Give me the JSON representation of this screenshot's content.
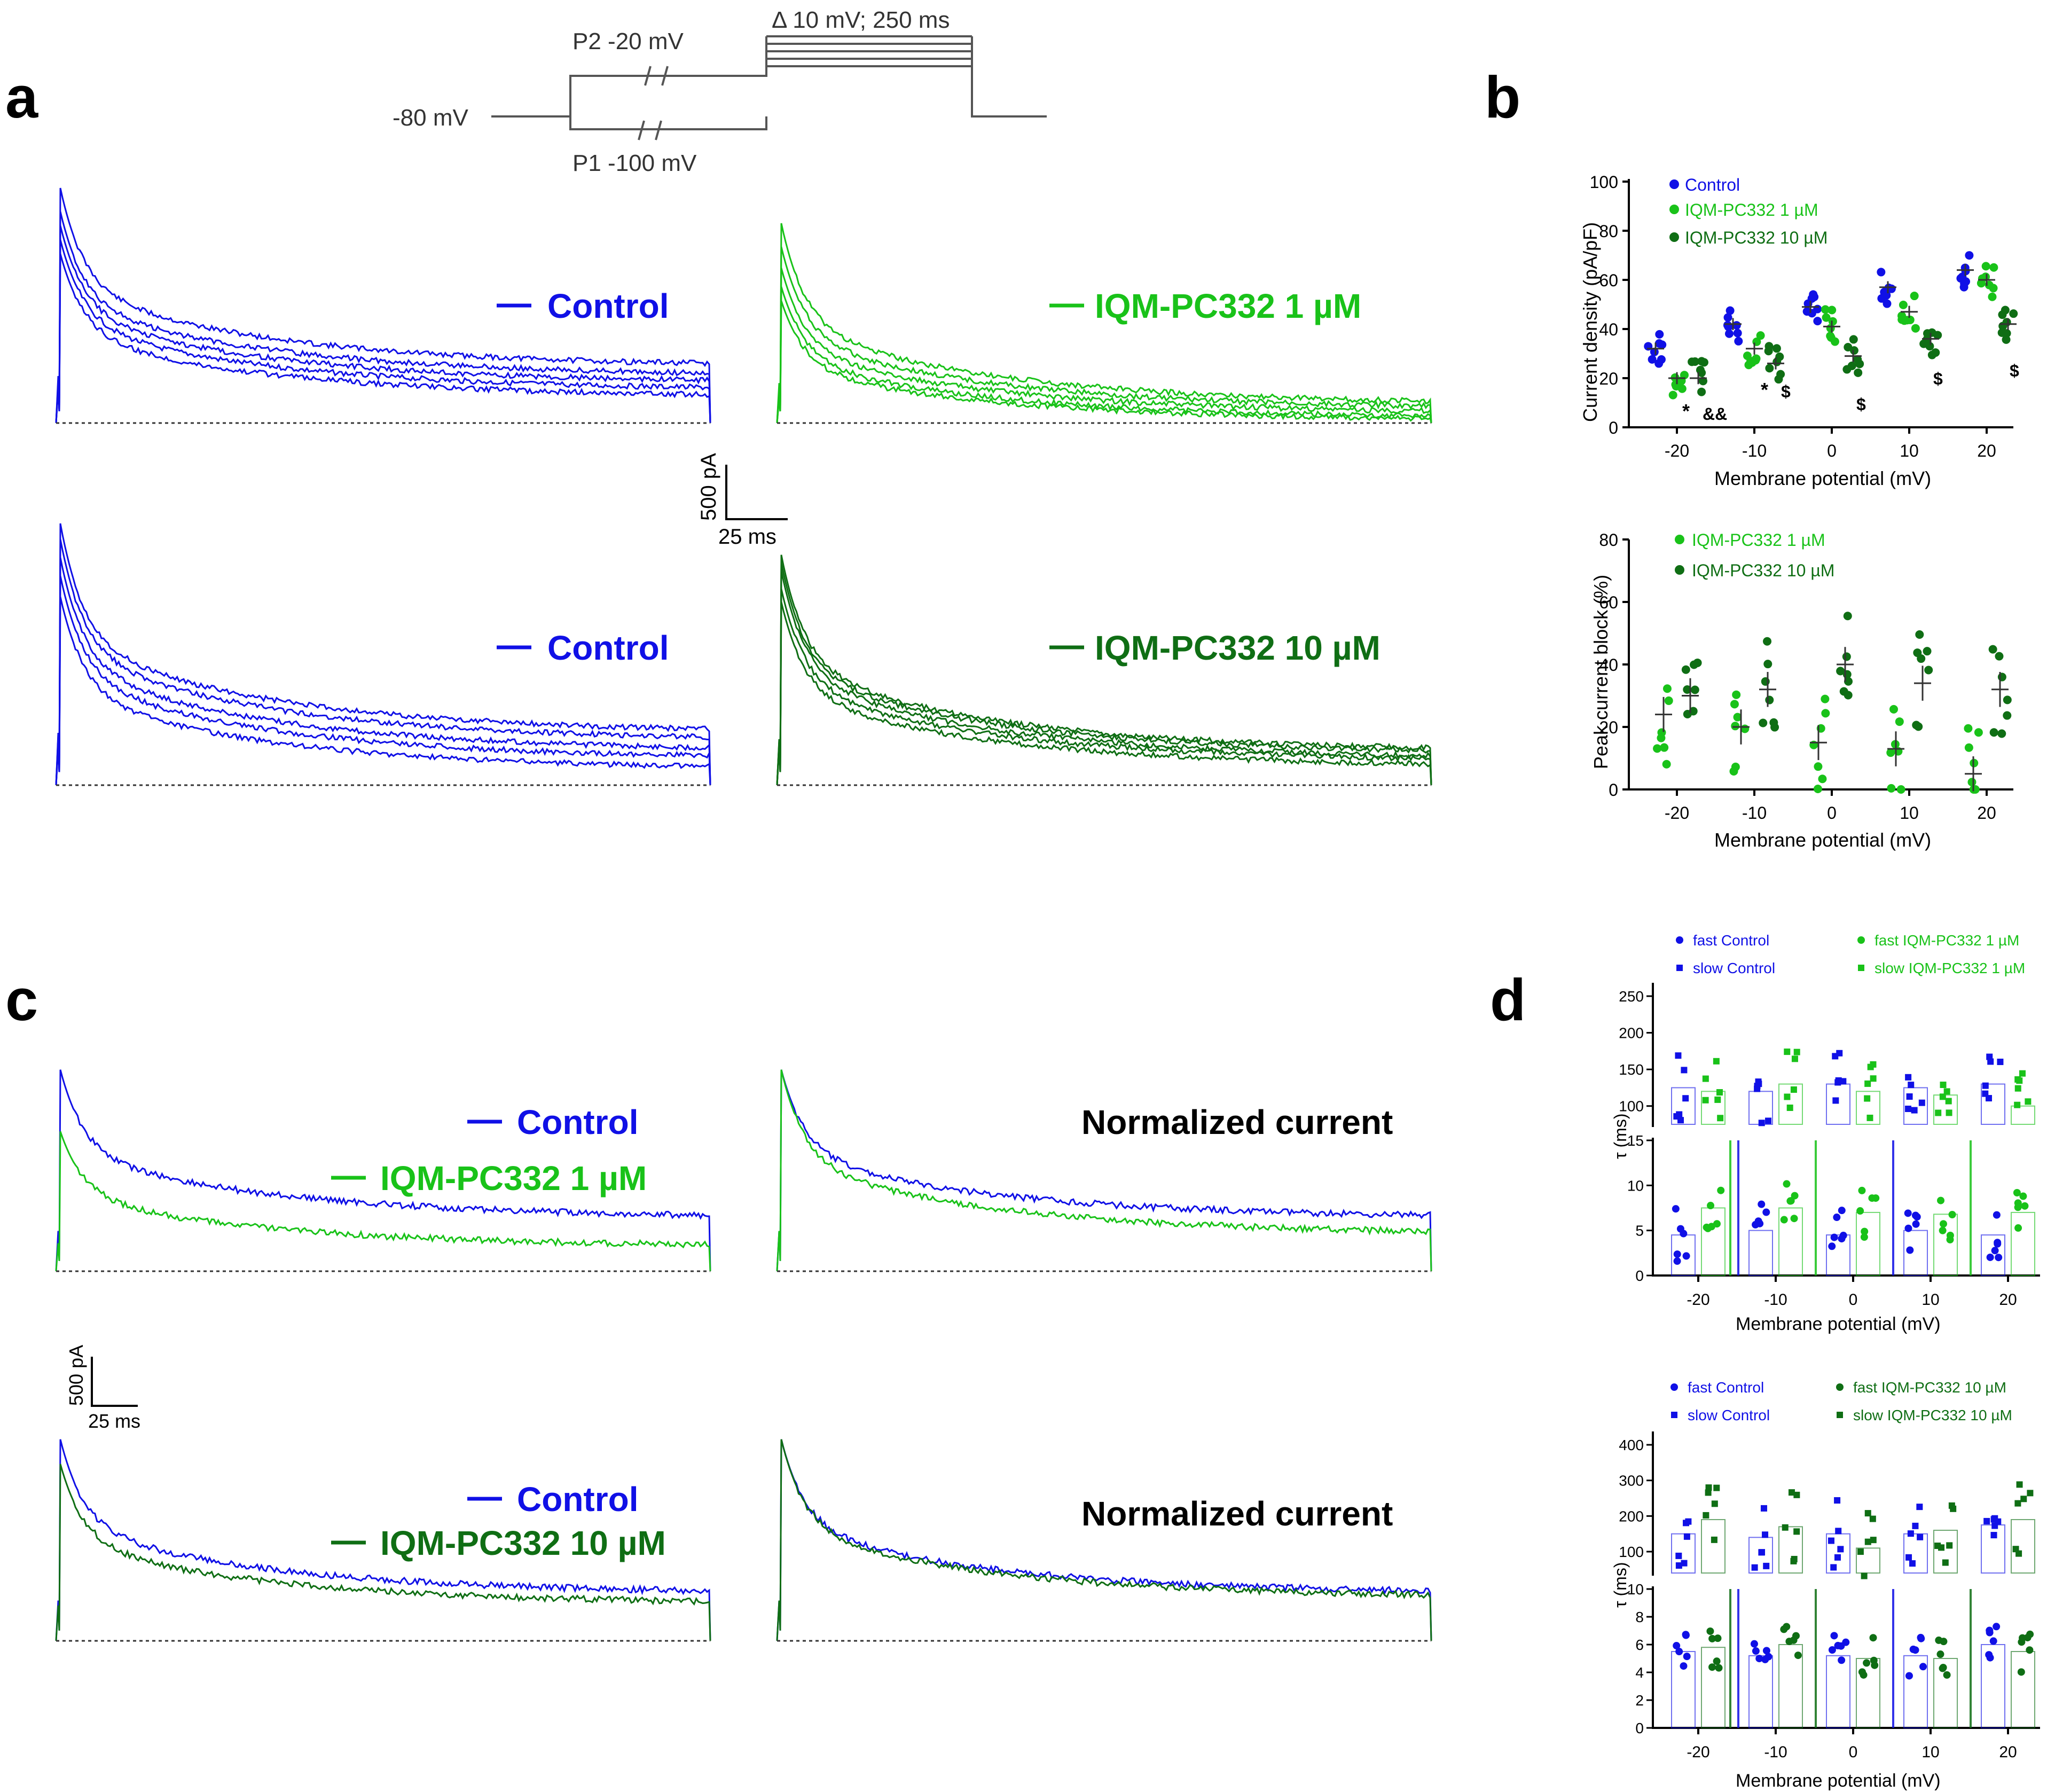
{
  "colors": {
    "control": "#1010e6",
    "light": "#19c219",
    "dark": "#0f6e14",
    "black": "#000000"
  },
  "panel_a": {
    "label": "a",
    "protocol": {
      "hold": "-80 mV",
      "p1": "P1 -100 mV",
      "p2": "P2 -20 mV",
      "step": "Δ 10 mV; 250 ms"
    },
    "legend_control": "Control",
    "legend_1uM": "IQM-PC332 1 µM",
    "legend_10uM": "IQM-PC332 10 µM",
    "scale_y": "500 pA",
    "scale_x": "25 ms",
    "traces": {
      "top_left_peaks": [
        1.0,
        0.9,
        0.84,
        0.78,
        0.72
      ],
      "top_left_ends": [
        0.24,
        0.2,
        0.17,
        0.14,
        0.11
      ],
      "top_right_peaks": [
        0.85,
        0.75,
        0.66,
        0.58,
        0.52
      ],
      "top_right_ends": [
        0.08,
        0.06,
        0.04,
        0.02,
        0.01
      ],
      "bottom_left_peaks": [
        1.0,
        0.94,
        0.87,
        0.8,
        0.72
      ],
      "bottom_left_ends": [
        0.2,
        0.17,
        0.13,
        0.1,
        0.06
      ],
      "bottom_right_peaks": [
        0.88,
        0.85,
        0.82,
        0.75,
        0.7
      ],
      "bottom_right_ends": [
        0.13,
        0.12,
        0.1,
        0.09,
        0.07
      ]
    }
  },
  "panel_b": {
    "label": "b",
    "top": {
      "ylabel": "Current density (pA/pF)",
      "xlabel": "Membrane potential (mV)",
      "yticks": [
        "0",
        "20",
        "40",
        "60",
        "80",
        "100"
      ],
      "xticks": [
        "-20",
        "-10",
        "0",
        "10",
        "20"
      ],
      "legend": [
        "Control",
        "IQM-PC332 1 µM",
        "IQM-PC332 10 µM"
      ],
      "annotations": [
        "*",
        "&&",
        "*",
        "$",
        "$",
        "$",
        "$"
      ]
    },
    "bottom": {
      "ylabel": "Peak current block (%)",
      "xlabel": "Membrane potential (mV)",
      "yticks": [
        "0",
        "20",
        "40",
        "60",
        "80"
      ],
      "xticks": [
        "-20",
        "-10",
        "0",
        "10",
        "20"
      ],
      "legend": [
        "IQM-PC332 1 µM",
        "IQM-PC332 10 µM"
      ]
    }
  },
  "chart_data": [
    {
      "type": "scatter",
      "title": "",
      "xlabel": "Membrane potential (mV)",
      "ylabel": "Current density (pA/pF)",
      "ylim": [
        0,
        100
      ],
      "categories": [
        "-20",
        "-10",
        "0",
        "10",
        "20"
      ],
      "series": [
        {
          "name": "Control",
          "values": [
            32,
            42,
            49,
            57,
            64
          ]
        },
        {
          "name": "IQM-PC332 1 µM",
          "values": [
            20,
            32,
            41,
            47,
            60
          ]
        },
        {
          "name": "IQM-PC332 10 µM",
          "values": [
            20,
            26,
            29,
            36,
            42
          ]
        }
      ],
      "annotations": [
        "*",
        "&&",
        "*",
        "$",
        "$",
        "$",
        "$"
      ]
    },
    {
      "type": "scatter",
      "title": "",
      "xlabel": "Membrane potential (mV)",
      "ylabel": "Peak current block (%)",
      "ylim": [
        0,
        80
      ],
      "categories": [
        "-20",
        "-10",
        "0",
        "10",
        "20"
      ],
      "series": [
        {
          "name": "IQM-PC332 1 µM",
          "values": [
            24,
            20,
            15,
            13,
            5
          ]
        },
        {
          "name": "IQM-PC332 10 µM",
          "values": [
            30,
            32,
            40,
            34,
            32
          ]
        }
      ]
    },
    {
      "type": "bar",
      "title": "",
      "xlabel": "Membrane potential (mV)",
      "ylabel": "τ (ms)",
      "categories": [
        "-20",
        "-10",
        "0",
        "10",
        "20"
      ],
      "series": [
        {
          "name": "fast Control",
          "values": [
            4.5,
            5,
            4.5,
            5,
            4.5
          ]
        },
        {
          "name": "slow Control",
          "values": [
            125,
            120,
            130,
            125,
            130
          ]
        },
        {
          "name": "fast IQM-PC332 1 µM",
          "values": [
            7.5,
            7.5,
            7,
            6.8,
            7
          ]
        },
        {
          "name": "slow IQM-PC332 1 µM",
          "values": [
            120,
            130,
            120,
            115,
            100
          ]
        }
      ]
    },
    {
      "type": "bar",
      "title": "",
      "xlabel": "Membrane potential (mV)",
      "ylabel": "τ (ms)",
      "categories": [
        "-20",
        "-10",
        "0",
        "10",
        "20"
      ],
      "series": [
        {
          "name": "fast Control",
          "values": [
            5.5,
            5.2,
            5.2,
            5.2,
            6
          ]
        },
        {
          "name": "slow Control",
          "values": [
            150,
            140,
            150,
            150,
            175
          ]
        },
        {
          "name": "fast IQM-PC332 10 µM",
          "values": [
            5.8,
            6,
            5,
            5,
            5.5
          ]
        },
        {
          "name": "slow IQM-PC332 10 µM",
          "values": [
            190,
            170,
            110,
            160,
            190
          ]
        }
      ]
    }
  ],
  "panel_c": {
    "label": "c",
    "legend_control": "Control",
    "legend_1uM": "IQM-PC332 1 µM",
    "legend_10uM": "IQM-PC332 10 µM",
    "normalized": "Normalized current",
    "scale_y": "500 pA",
    "scale_x": "25 ms"
  },
  "panel_d": {
    "label": "d",
    "top_legend": [
      "fast Control",
      "slow Control",
      "fast IQM-PC332 1 µM",
      "slow IQM-PC332 1 µM"
    ],
    "bottom_legend": [
      "fast Control",
      "slow Control",
      "fast IQM-PC332 10 µM",
      "slow IQM-PC332 10 µM"
    ],
    "ylabel": "τ (ms)",
    "xlabel": "Membrane potential (mV)",
    "xticks": [
      "-20",
      "-10",
      "0",
      "10",
      "20"
    ],
    "top_upper_yticks": [
      "100",
      "150",
      "200",
      "250"
    ],
    "top_lower_yticks": [
      "0",
      "5",
      "10",
      "15"
    ],
    "bottom_upper_yticks": [
      "100",
      "200",
      "300",
      "400"
    ],
    "bottom_lower_yticks": [
      "0",
      "2",
      "4",
      "6",
      "8",
      "10"
    ]
  }
}
